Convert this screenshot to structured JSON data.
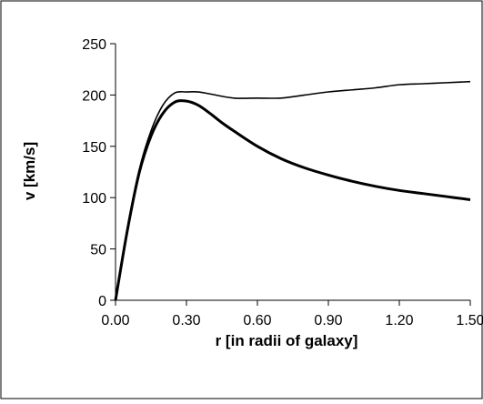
{
  "chart_data": {
    "type": "line",
    "title": "",
    "xlabel": "r [in radii of galaxy]",
    "ylabel": "v [km/s]",
    "xlim": [
      0,
      1.5
    ],
    "ylim": [
      0,
      250
    ],
    "x_ticks": [
      "0.00",
      "0.30",
      "0.60",
      "0.90",
      "1.20",
      "1.50"
    ],
    "y_ticks": [
      "0",
      "50",
      "100",
      "150",
      "200",
      "250"
    ],
    "grid": false,
    "legend": "none",
    "series": [
      {
        "x": [
          0,
          0.05,
          0.1,
          0.15,
          0.2,
          0.25,
          0.3,
          0.35,
          0.4,
          0.5,
          0.6,
          0.7,
          0.8,
          0.9,
          1.0,
          1.1,
          1.2,
          1.3,
          1.4,
          1.5
        ],
        "values": [
          0,
          70,
          127,
          165,
          190,
          202,
          203,
          203,
          201,
          197,
          197,
          197,
          200,
          203,
          205,
          207,
          210,
          211,
          212,
          213
        ],
        "color": "#000000"
      },
      {
        "x": [
          0,
          0.05,
          0.1,
          0.15,
          0.2,
          0.25,
          0.3,
          0.35,
          0.4,
          0.45,
          0.5,
          0.6,
          0.7,
          0.8,
          0.9,
          1.0,
          1.1,
          1.2,
          1.3,
          1.4,
          1.5
        ],
        "values": [
          0,
          68,
          124,
          160,
          182,
          193,
          194,
          190,
          182,
          173,
          165,
          150,
          138,
          129,
          122,
          116,
          111,
          107,
          104,
          101,
          98
        ],
        "color": "#000000"
      }
    ]
  }
}
